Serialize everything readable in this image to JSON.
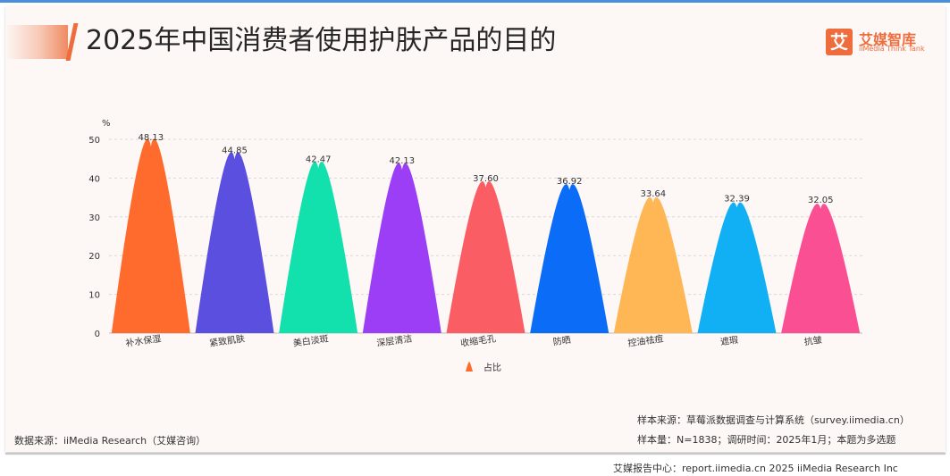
{
  "header": {
    "title": "2025年中国消费者使用护肤产品的目的",
    "logo_mark": "艾",
    "logo_cn": "艾媒智库",
    "logo_en": "iiMedia Think Tank"
  },
  "chart_data": {
    "type": "bar",
    "title": "",
    "xlabel": "",
    "ylabel": "%",
    "ylim": [
      0,
      50
    ],
    "yticks": [
      0,
      10,
      20,
      30,
      40,
      50
    ],
    "grid": true,
    "legend_position": "bottom",
    "categories": [
      "补水保湿",
      "紧致肌肤",
      "美白淡斑",
      "深层清洁",
      "收缩毛孔",
      "防晒",
      "控油祛痘",
      "遮瑕",
      "抗皱"
    ],
    "series": [
      {
        "name": "占比",
        "values": [
          48.13,
          44.85,
          42.47,
          42.13,
          37.6,
          36.92,
          33.64,
          32.39,
          32.05
        ]
      }
    ],
    "value_labels": [
      "48.13",
      "44.85",
      "42.47",
      "42.13",
      "37.60",
      "36.92",
      "33.64",
      "32.39",
      "32.05"
    ],
    "colors": [
      "#ff6b2c",
      "#5b4fe0",
      "#12e0ad",
      "#9b3ef5",
      "#fb5d64",
      "#0b6cf7",
      "#ffb655",
      "#11b0f5",
      "#fb4f93"
    ],
    "legend_color": "#ff6b2c"
  },
  "notes": {
    "source": "数据来源：iiMedia Research（艾媒咨询）",
    "sample_source": "样本来源：草莓派数据调查与计算系统（survey.iimedia.cn）",
    "sample_size": "样本量：N=1838；调研时间：2025年1月；本题为多选题"
  },
  "footer": {
    "text": "艾媒报告中心：report.iimedia.cn   2025 iiMedia Research Inc"
  }
}
